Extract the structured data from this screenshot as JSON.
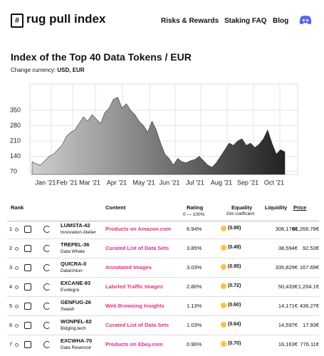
{
  "header": {
    "logo": "#",
    "brand": "rug pull index",
    "nav": [
      "Risks & Rewards",
      "Staking FAQ",
      "Blog"
    ]
  },
  "currency": {
    "label": "Change currency:",
    "options": "USD, EUR"
  },
  "chart_data": {
    "type": "area",
    "title": "Index of the Top 40 Data Tokens / EUR",
    "xtick_labels": [
      "Jan '21",
      "Feb '21",
      "Mar '21",
      "Apr '21",
      "May '21",
      "Jun '21",
      "Jul '21",
      "Aug '21",
      "Sep '21",
      "Oct '21"
    ],
    "values": [
      115,
      105,
      100,
      120,
      140,
      150,
      170,
      190,
      230,
      250,
      260,
      290,
      320,
      300,
      330,
      310,
      290,
      340,
      360,
      400,
      410,
      360,
      380,
      350,
      330,
      300,
      280,
      250,
      300,
      260,
      200,
      150,
      130,
      100,
      130,
      115,
      110,
      120,
      125,
      140,
      120,
      100,
      90,
      110,
      140,
      170,
      200,
      190,
      210,
      220,
      190,
      200,
      180,
      195,
      220,
      260,
      200,
      150,
      170,
      160
    ],
    "ylim": [
      57,
      470
    ],
    "yticks": [
      70,
      140,
      210,
      280,
      350
    ],
    "grid": true,
    "gradient": [
      "#cfcfcf",
      "#222222"
    ]
  },
  "table": {
    "headers": [
      "Rank",
      "Content",
      "Rating",
      "Equality",
      "Liquidity",
      "Price"
    ],
    "rating_sub": "0 — 100%",
    "equality_sub": "Gini coefficient",
    "rows": [
      [
        "1",
        "LUMSTA-42",
        "Innovation Atelier",
        "Products on Amazon.com",
        "6.94%",
        "(0.88)",
        "306,176€",
        "61,266.78€"
      ],
      [
        "2",
        "TREPEL-36",
        "Data Whale",
        "Curated List of Data Sets",
        "3.85%",
        "(0.49)",
        "38,594€",
        "92.53€"
      ],
      [
        "3",
        "QUICRA-0",
        "DataUnion",
        "Annotated Images",
        "3.03%",
        "(0.95)",
        "335,829€",
        "167.69€"
      ],
      [
        "4",
        "EXCANE-93",
        "Evotegra",
        "Labeled Traffic Images",
        "2.80%",
        "(0.72)",
        "50,433€",
        "1,204.1€"
      ],
      [
        "5",
        "GENFUG-26",
        "Swash",
        "Web Browsing Insights",
        "1.13%",
        "(0.60)",
        "14,171€",
        "436.27€"
      ],
      [
        "6",
        "WONPEL-82",
        "Bidging.tech",
        "Curated List of Data Sets",
        "1.03%",
        "(0.64)",
        "14,597€",
        "17.93€"
      ],
      [
        "7",
        "EXCWHA-70",
        "Data Reservoir",
        "Products on Ebay.com",
        "0.96%",
        "(0.70)",
        "16,163€",
        "776.11€"
      ]
    ]
  }
}
